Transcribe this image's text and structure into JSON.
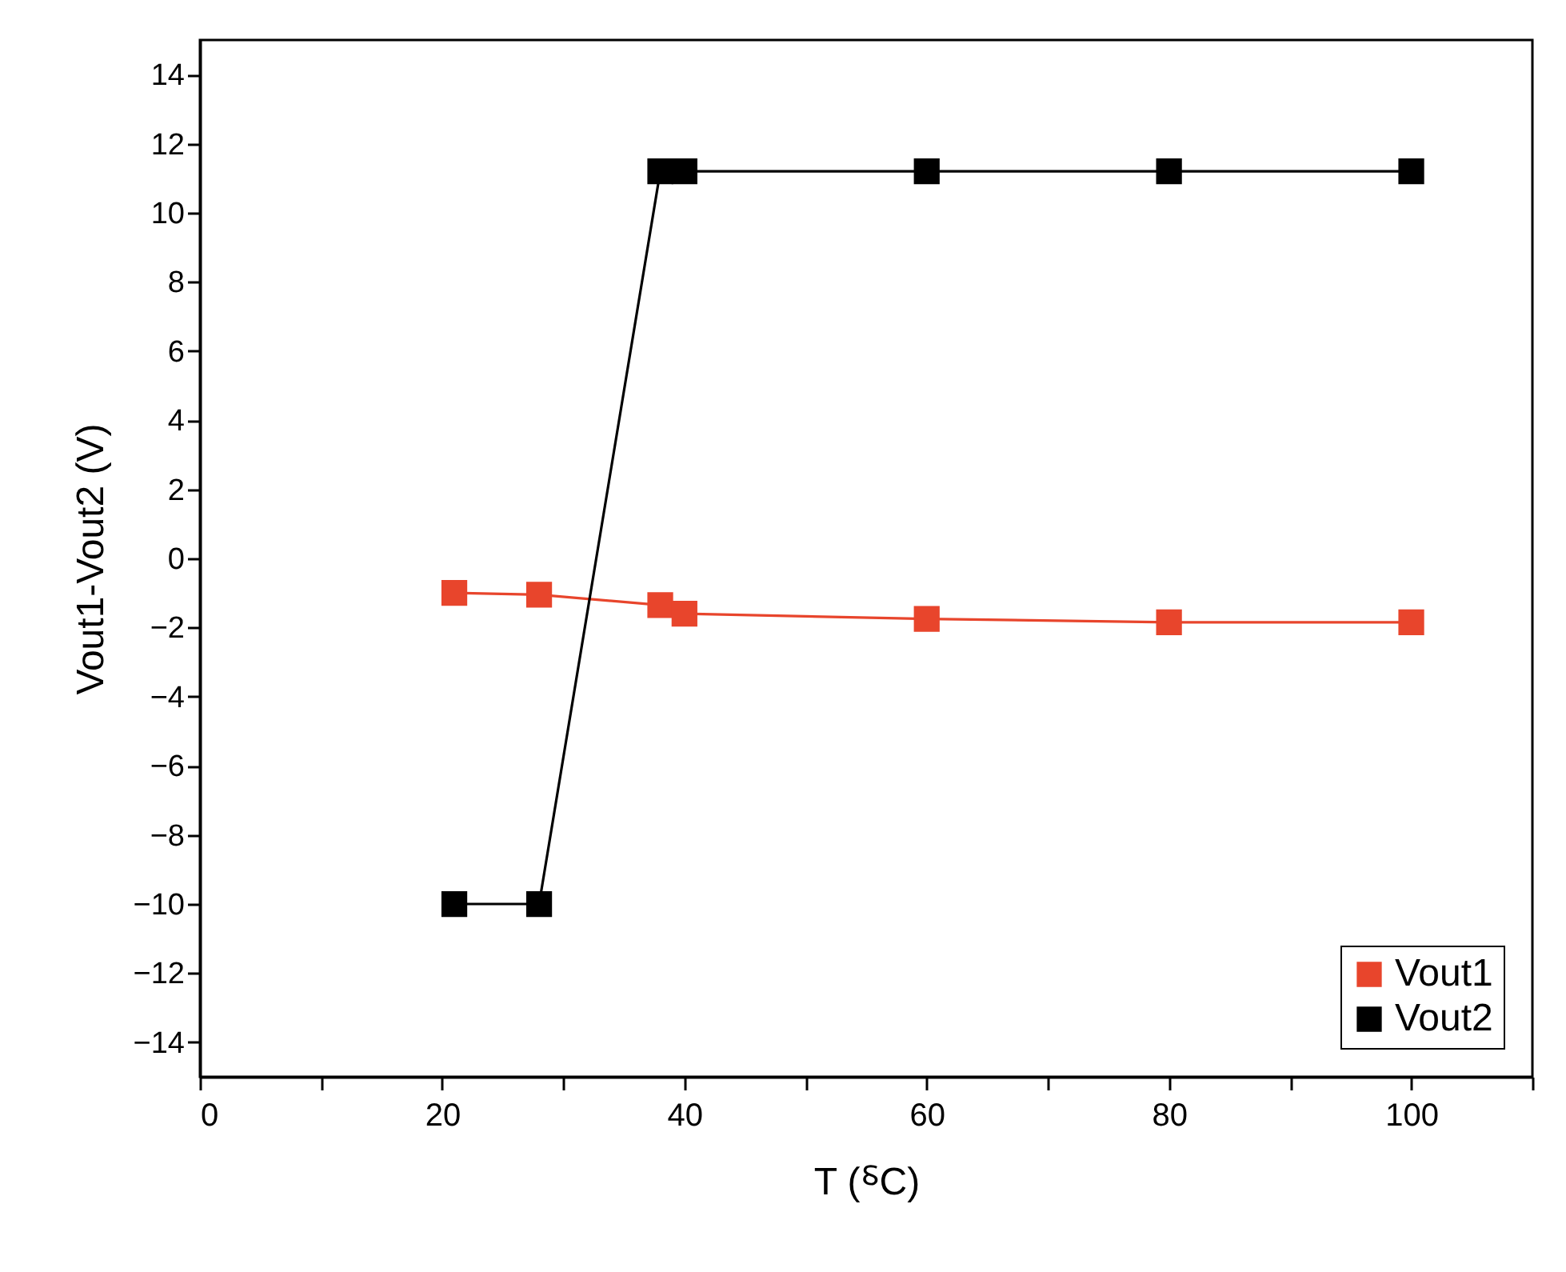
{
  "chart_data": {
    "type": "line",
    "xlabel": "T (⸹C)",
    "ylabel": "Vout1-Vout2 (V)",
    "xlim": [
      0,
      110
    ],
    "xticks": [
      0,
      {
        "value": 10,
        "label": null
      },
      20,
      {
        "value": 30,
        "label": null
      },
      40,
      {
        "value": 50,
        "label": null
      },
      60,
      {
        "value": 70,
        "label": null
      },
      80,
      {
        "value": 90,
        "label": null
      },
      100,
      {
        "value": 110,
        "label": null
      }
    ],
    "ylim": [
      -15,
      15
    ],
    "yticks": [
      -14,
      -12,
      -10,
      -8,
      -6,
      -4,
      -2,
      0,
      2,
      4,
      6,
      8,
      10,
      12,
      14
    ],
    "grid": false,
    "legend": "bottom right",
    "marker": "square",
    "line_style": "solid",
    "series": [
      {
        "name": "Vout1",
        "color": "#e8452c",
        "x": [
          21,
          28,
          38,
          40,
          60,
          80,
          100
        ],
        "values": [
          -1.0,
          -1.05,
          -1.35,
          -1.6,
          -1.75,
          -1.85,
          -1.85
        ]
      },
      {
        "name": "Vout2",
        "color": "#000000",
        "x": [
          21,
          28,
          38,
          40,
          60,
          80,
          100
        ],
        "values": [
          -10,
          -10,
          11.2,
          11.2,
          11.2,
          11.2,
          11.2
        ]
      }
    ]
  }
}
